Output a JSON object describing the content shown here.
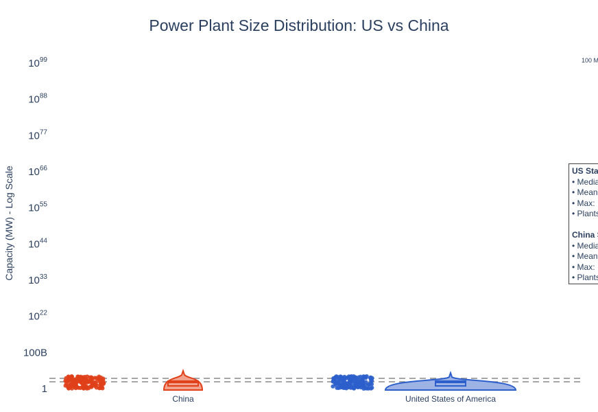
{
  "chart_data": {
    "type": "violin",
    "title": "Power Plant Size Distribution: US vs China",
    "ylabel": "Capacity (MW) - Log Scale",
    "y_scale": "log",
    "y_ticks": [
      {
        "base": "1",
        "sup": ""
      },
      {
        "base": "100B",
        "sup": ""
      },
      {
        "base": "10",
        "sup": "22"
      },
      {
        "base": "10",
        "sup": "33"
      },
      {
        "base": "10",
        "sup": "44"
      },
      {
        "base": "10",
        "sup": "55"
      },
      {
        "base": "10",
        "sup": "66"
      },
      {
        "base": "10",
        "sup": "77"
      },
      {
        "base": "10",
        "sup": "88"
      },
      {
        "base": "10",
        "sup": "99"
      }
    ],
    "categories": [
      "China",
      "United States of America"
    ],
    "series": [
      {
        "name": "China",
        "color": "#e0401a",
        "fill": "#f2a18c"
      },
      {
        "name": "United States of America",
        "color": "#2c5fcb",
        "fill": "#9db3e6"
      }
    ],
    "reference_line_note": "100 M",
    "legend": "none"
  },
  "stats_box": {
    "us_header": "US Statistics",
    "us_lines": [
      "• Median: ",
      "• Mean: ",
      "• Max: ",
      "• Plants: "
    ],
    "china_header": "China Statistics",
    "china_lines": [
      "• Median: ",
      "• Mean: ",
      "• Max: ",
      "• Plants: "
    ]
  }
}
